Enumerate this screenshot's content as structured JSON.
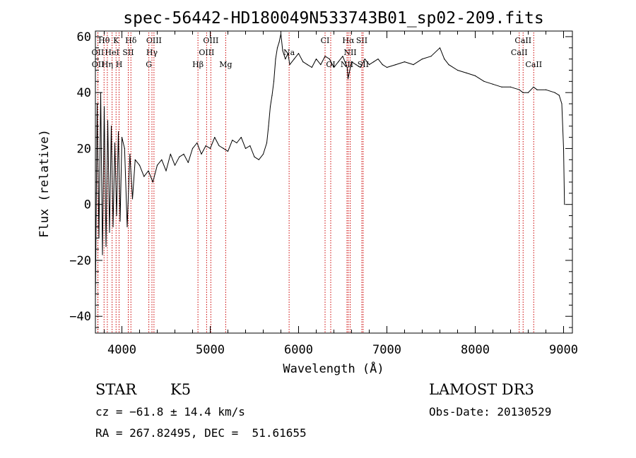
{
  "chart_data": {
    "type": "line",
    "title": "spec-56442-HD180049N533743B01_sp02-209.fits",
    "xlabel": "Wavelength (Å)",
    "ylabel": "Flux (relative)",
    "xlim": [
      3700,
      9100
    ],
    "ylim": [
      -46,
      62
    ],
    "xticks": [
      4000,
      5000,
      6000,
      7000,
      8000,
      9000
    ],
    "yticks": [
      -40,
      -20,
      0,
      20,
      40,
      60
    ],
    "xtick_labels": [
      "4000",
      "5000",
      "6000",
      "7000",
      "8000",
      "9000"
    ],
    "ytick_labels": [
      "−40",
      "−20",
      "0",
      "20",
      "40",
      "60"
    ],
    "series": [
      {
        "name": "flux",
        "x": [
          3700,
          3720,
          3740,
          3760,
          3780,
          3800,
          3820,
          3840,
          3860,
          3880,
          3900,
          3920,
          3940,
          3960,
          3980,
          4000,
          4030,
          4060,
          4090,
          4120,
          4150,
          4200,
          4250,
          4300,
          4350,
          4400,
          4450,
          4500,
          4550,
          4600,
          4650,
          4700,
          4750,
          4800,
          4850,
          4900,
          4950,
          5000,
          5050,
          5100,
          5150,
          5200,
          5250,
          5300,
          5350,
          5400,
          5450,
          5500,
          5550,
          5600,
          5640,
          5660,
          5680,
          5700,
          5720,
          5740,
          5760,
          5780,
          5800,
          5820,
          5850,
          5880,
          5900,
          5950,
          6000,
          6050,
          6100,
          6150,
          6200,
          6250,
          6300,
          6350,
          6400,
          6450,
          6500,
          6550,
          6560,
          6580,
          6600,
          6650,
          6700,
          6750,
          6800,
          6850,
          6900,
          6950,
          7000,
          7100,
          7200,
          7300,
          7400,
          7500,
          7600,
          7650,
          7700,
          7800,
          7900,
          8000,
          8100,
          8200,
          8300,
          8400,
          8500,
          8540,
          8600,
          8660,
          8700,
          8800,
          8900,
          8950,
          8980,
          9000,
          9010
        ],
        "y": [
          -34,
          36,
          -12,
          40,
          -18,
          35,
          -15,
          30,
          -10,
          28,
          -8,
          22,
          -4,
          26,
          -6,
          24,
          20,
          -8,
          18,
          2,
          16,
          14,
          10,
          12,
          8,
          14,
          16,
          12,
          18,
          14,
          17,
          18,
          15,
          20,
          22,
          18,
          21,
          20,
          24,
          21,
          20,
          19,
          23,
          22,
          24,
          20,
          21,
          17,
          16,
          18,
          22,
          28,
          35,
          39,
          44,
          52,
          56,
          58,
          61,
          55,
          52,
          54,
          50,
          52,
          54,
          51,
          50,
          49,
          52,
          50,
          53,
          52,
          49,
          51,
          53,
          49,
          45,
          48,
          51,
          50,
          49,
          52,
          50,
          51,
          52,
          50,
          49,
          50,
          51,
          50,
          52,
          53,
          56,
          52,
          50,
          48,
          47,
          46,
          44,
          43,
          42,
          42,
          41,
          40,
          40,
          42,
          41,
          41,
          40,
          39,
          36,
          20,
          0
        ]
      }
    ],
    "spectral_lines": [
      {
        "label": "Hθ",
        "x": 3798,
        "row": 1
      },
      {
        "label": "K",
        "x": 3934,
        "row": 1
      },
      {
        "label": "Hδ",
        "x": 4102,
        "row": 1
      },
      {
        "label": "OIII",
        "x": 4363,
        "row": 1
      },
      {
        "label": "OIII",
        "x": 5007,
        "row": 1
      },
      {
        "label": "CI",
        "x": 6300,
        "row": 1
      },
      {
        "label": "Hα",
        "x": 6563,
        "row": 1
      },
      {
        "label": "SII",
        "x": 6716,
        "row": 1
      },
      {
        "label": "CaII",
        "x": 8542,
        "row": 1
      },
      {
        "label": "OII",
        "x": 3727,
        "row": 2
      },
      {
        "label": "HeI",
        "x": 3889,
        "row": 2
      },
      {
        "label": "SII",
        "x": 4072,
        "row": 2
      },
      {
        "label": "Hγ",
        "x": 4340,
        "row": 2
      },
      {
        "label": "OIII",
        "x": 4959,
        "row": 2
      },
      {
        "label": "Na",
        "x": 5893,
        "row": 2
      },
      {
        "label": "NII",
        "x": 6584,
        "row": 2
      },
      {
        "label": "CaII",
        "x": 8498,
        "row": 2
      },
      {
        "label": "OII",
        "x": 3729,
        "row": 3
      },
      {
        "label": "Hη",
        "x": 3835,
        "row": 3
      },
      {
        "label": "H",
        "x": 3968,
        "row": 3
      },
      {
        "label": "G",
        "x": 4305,
        "row": 3
      },
      {
        "label": "Hβ",
        "x": 4861,
        "row": 3
      },
      {
        "label": "Mg",
        "x": 5175,
        "row": 3
      },
      {
        "label": "OI",
        "x": 6364,
        "row": 3
      },
      {
        "label": "NII",
        "x": 6548,
        "row": 3
      },
      {
        "label": "SII",
        "x": 6731,
        "row": 3
      },
      {
        "label": "CaII",
        "x": 8662,
        "row": 3
      }
    ],
    "line_color": "#000000",
    "marker_color": "#cc0000"
  },
  "info": {
    "object_class": "STAR",
    "subclass": "K5",
    "survey": "LAMOST DR3",
    "cz": "cz = −61.8 ± 14.4 km/s",
    "obs_date": "Obs-Date: 20130529",
    "coords": "RA = 267.82495, DEC =  51.61655"
  }
}
